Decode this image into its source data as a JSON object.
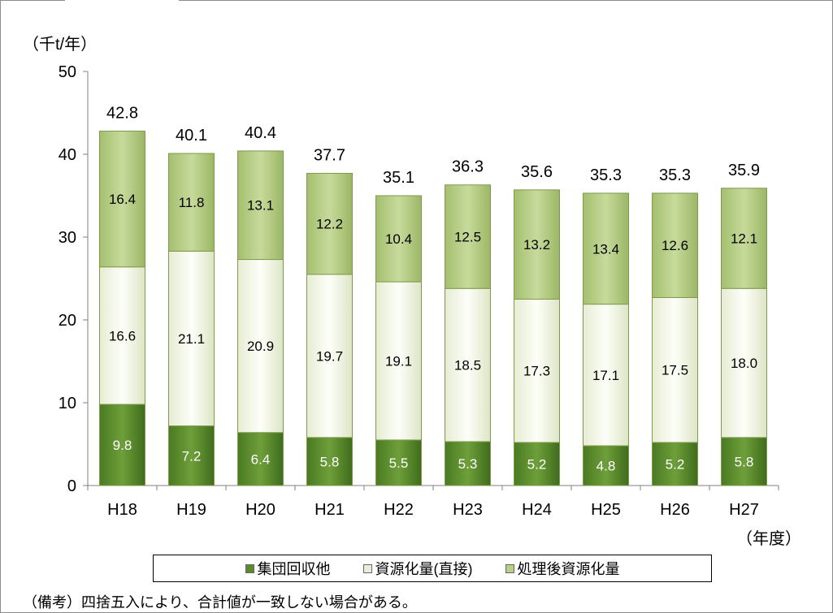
{
  "chart_data": {
    "type": "bar",
    "stacked": true,
    "ylabel": "（千t/年）",
    "xlabel": "（年度）",
    "ylim": [
      0,
      50
    ],
    "yticks": [
      0,
      10,
      20,
      30,
      40,
      50
    ],
    "categories": [
      "H18",
      "H19",
      "H20",
      "H21",
      "H22",
      "H23",
      "H24",
      "H25",
      "H26",
      "H27"
    ],
    "series": [
      {
        "name": "集団回収他",
        "values": [
          9.8,
          7.2,
          6.4,
          5.8,
          5.5,
          5.3,
          5.2,
          4.8,
          5.2,
          5.8
        ],
        "color": "#5a8a2a",
        "label_color": "#ffffff"
      },
      {
        "name": "資源化量(直接)",
        "values": [
          16.6,
          21.1,
          20.9,
          19.7,
          19.1,
          18.5,
          17.3,
          17.1,
          17.5,
          18.0
        ],
        "color": "#f7f9ee",
        "label_color": "#000000"
      },
      {
        "name": "処理後資源化量",
        "values": [
          16.4,
          11.8,
          13.1,
          12.2,
          10.4,
          12.5,
          13.2,
          13.4,
          12.6,
          12.1
        ],
        "color": "#b8cf86",
        "label_color": "#000000"
      }
    ],
    "totals": [
      "42.8",
      "40.1",
      "40.4",
      "37.7",
      "35.1",
      "36.3",
      "35.6",
      "35.3",
      "35.3",
      "35.9"
    ],
    "legend": "bottom",
    "grid": false
  },
  "note": "（備考）四捨五入により、合計値が一致しない場合がある。"
}
